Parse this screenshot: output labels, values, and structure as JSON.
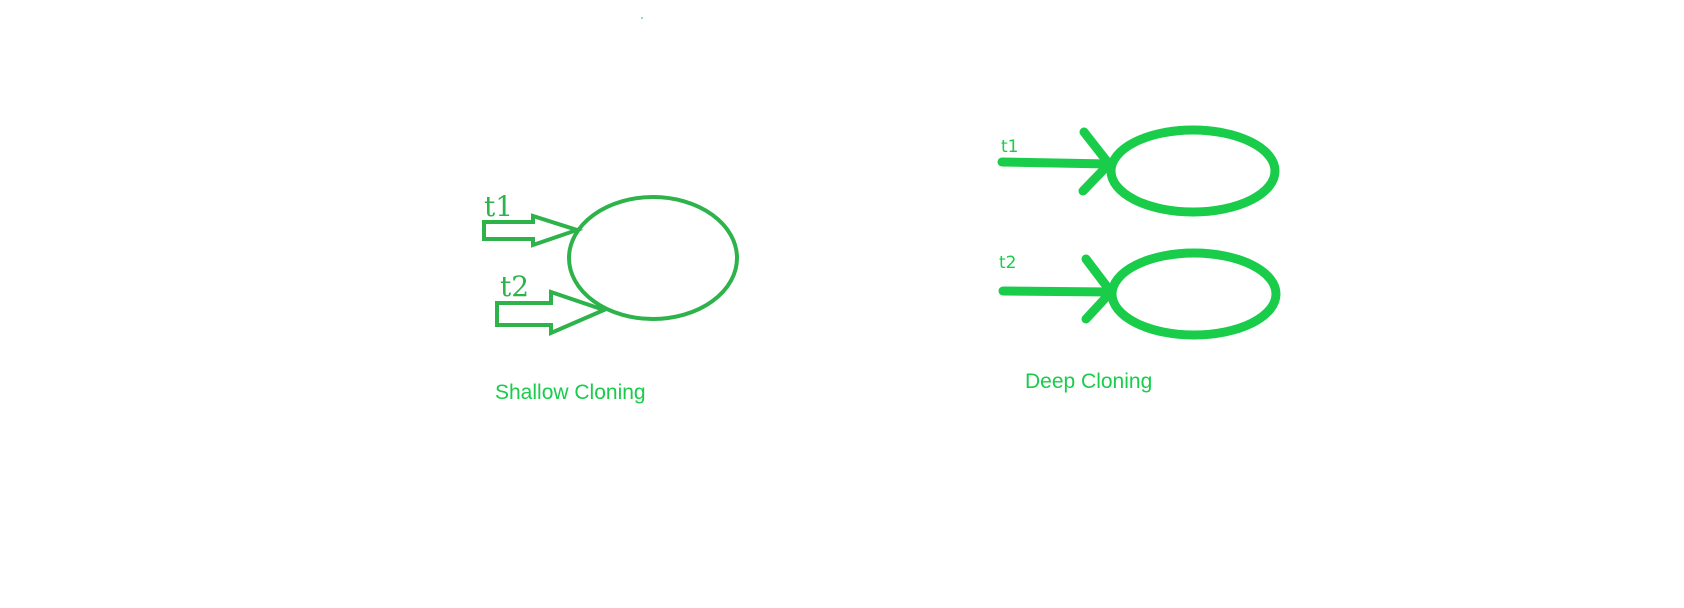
{
  "colors": {
    "background": "#ffffff",
    "shallow": "#2db34a",
    "deep": "#19cc4a"
  },
  "shallow": {
    "ref_1": "t1",
    "ref_2": "t2",
    "caption": "Shallow Cloning"
  },
  "deep": {
    "ref_1": "t1",
    "ref_2": "t2",
    "caption": "Deep Cloning"
  }
}
